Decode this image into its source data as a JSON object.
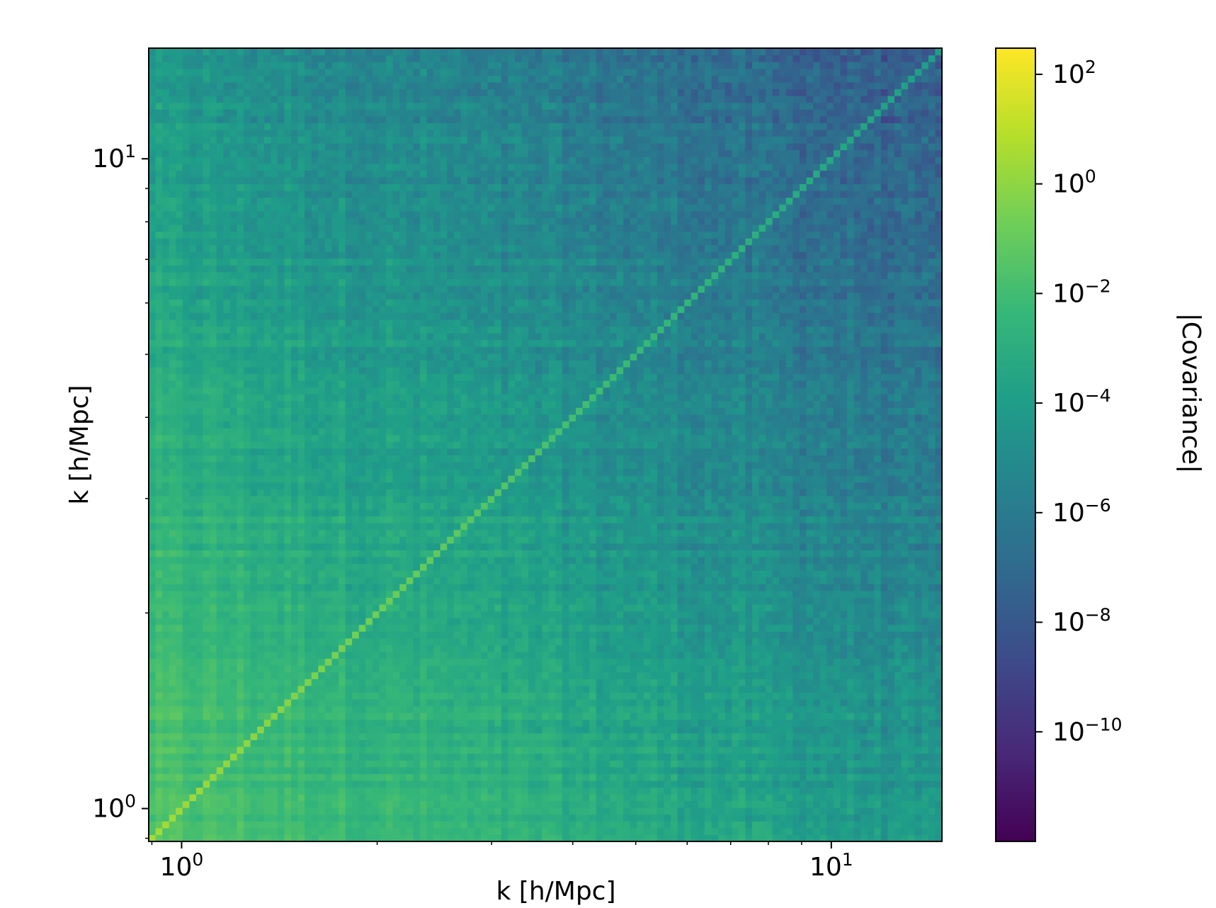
{
  "chart_data": {
    "type": "heatmap",
    "title": "",
    "xlabel": "k [h/Mpc]",
    "ylabel": "k [h/Mpc]",
    "colorbar_label": "|Covariance|",
    "xscale": "log",
    "yscale": "log",
    "xlim": [
      0.89,
      14.8
    ],
    "ylim": [
      0.89,
      14.8
    ],
    "x_ticks": [
      {
        "value": 1,
        "base": "10",
        "exp": "0"
      },
      {
        "value": 10,
        "base": "10",
        "exp": "1"
      }
    ],
    "y_ticks": [
      {
        "value": 1,
        "base": "10",
        "exp": "0"
      },
      {
        "value": 10,
        "base": "10",
        "exp": "1"
      }
    ],
    "colorbar": {
      "scale": "log",
      "colormap": "viridis",
      "range": [
        1e-12,
        300
      ],
      "ticks": [
        {
          "value": 100,
          "base": "10",
          "exp": "2"
        },
        {
          "value": 1,
          "base": "10",
          "exp": "0"
        },
        {
          "value": 0.01,
          "base": "10",
          "exp": "−2"
        },
        {
          "value": 0.0001,
          "base": "10",
          "exp": "−4"
        },
        {
          "value": 1e-06,
          "base": "10",
          "exp": "−6"
        },
        {
          "value": 1e-08,
          "base": "10",
          "exp": "−8"
        },
        {
          "value": 1e-10,
          "base": "10",
          "exp": "−10"
        }
      ]
    },
    "matrix_description": {
      "n_bins": 117,
      "diagonal_value_at_kmin": 3.0,
      "diagonal_value_at_kmax": 0.0001,
      "offdiag_value_at_kmin": 0.02,
      "offdiag_value_at_kmax": 1e-08
    },
    "colormap_stops": [
      "#440154",
      "#482878",
      "#3e4989",
      "#31688e",
      "#26828e",
      "#1f9e89",
      "#35b779",
      "#6ece58",
      "#b5de2b",
      "#fde725"
    ]
  }
}
